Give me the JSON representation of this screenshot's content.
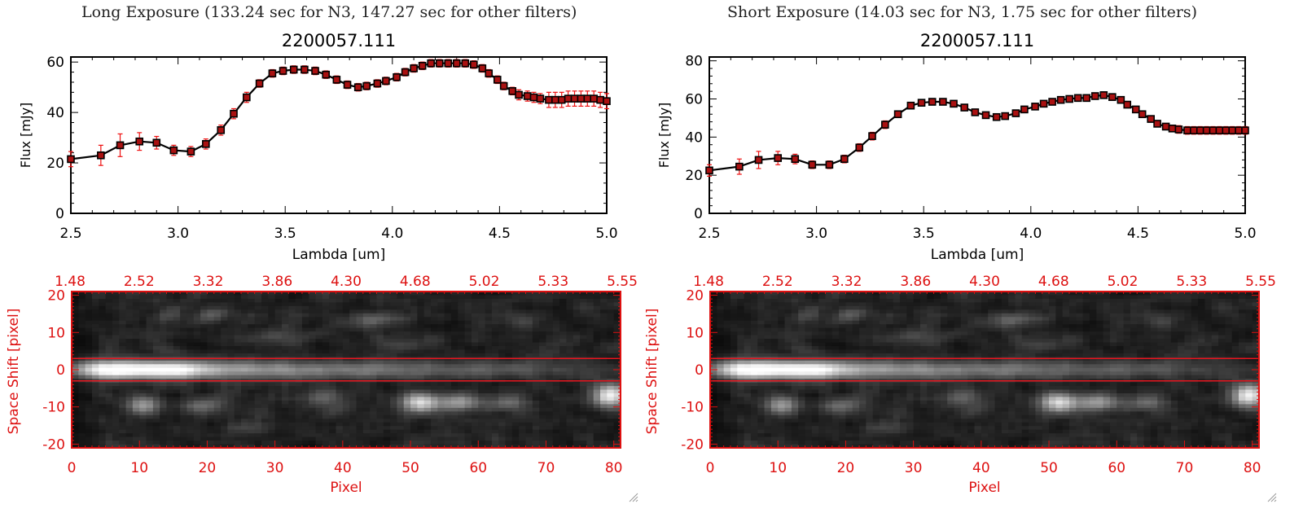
{
  "panels": [
    {
      "id": "long",
      "header": "Long Exposure (133.24 sec for N3, 147.27 sec for other filters)",
      "spectrum": {
        "type": "line",
        "title": "2200057.111",
        "xlabel": "Lambda [um]",
        "ylabel": "Flux [mJy]",
        "xlim": [
          2.5,
          5.0
        ],
        "ylim": [
          0,
          62
        ],
        "xticks": [
          "2.5",
          "3.0",
          "3.5",
          "4.0",
          "4.5",
          "5.0"
        ],
        "xtick_values": [
          2.5,
          3.0,
          3.5,
          4.0,
          4.5,
          5.0
        ],
        "yticks": [
          "0",
          "20",
          "40",
          "60"
        ],
        "ytick_values": [
          0,
          20,
          40,
          60
        ],
        "x": [
          2.5,
          2.64,
          2.73,
          2.82,
          2.9,
          2.98,
          3.06,
          3.13,
          3.2,
          3.26,
          3.32,
          3.38,
          3.44,
          3.49,
          3.54,
          3.59,
          3.64,
          3.69,
          3.74,
          3.79,
          3.84,
          3.88,
          3.93,
          3.97,
          4.02,
          4.06,
          4.1,
          4.14,
          4.18,
          4.22,
          4.26,
          4.3,
          4.34,
          4.38,
          4.42,
          4.45,
          4.49,
          4.52,
          4.56,
          4.59,
          4.63,
          4.66,
          4.69,
          4.73,
          4.76,
          4.79,
          4.82,
          4.85,
          4.88,
          4.91,
          4.94,
          4.97,
          5.0
        ],
        "y": [
          21.5,
          23,
          27,
          28.5,
          28,
          25,
          24.5,
          27.5,
          33,
          39.5,
          46,
          51.5,
          55.5,
          56.5,
          57,
          57,
          56.5,
          55,
          53,
          51,
          50,
          50.5,
          51.5,
          52.5,
          54,
          56,
          57.5,
          58.5,
          59.5,
          59.5,
          59.5,
          59.5,
          59.5,
          59,
          57.5,
          55.5,
          53,
          50.5,
          48.5,
          47,
          46.5,
          46,
          45.5,
          45,
          45,
          45,
          45.5,
          45.5,
          45.5,
          45.5,
          45.5,
          45,
          44.5
        ],
        "err": [
          3,
          4,
          4.5,
          3.5,
          2.5,
          2,
          2,
          2,
          2,
          2,
          2,
          1.5,
          1.5,
          1.5,
          1.5,
          1.5,
          1.5,
          1.5,
          1.5,
          1.5,
          1.5,
          1.5,
          1.5,
          1.5,
          1.5,
          1.5,
          1.5,
          1.5,
          1.5,
          1.5,
          1.5,
          1.5,
          1.5,
          1.5,
          1.5,
          1.5,
          1.5,
          1.5,
          1.5,
          2,
          2,
          2,
          2,
          3,
          3,
          3,
          3,
          3,
          3,
          3,
          3,
          3,
          3
        ]
      },
      "image": {
        "type": "heatmap",
        "xlabel": "Pixel",
        "ylabel": "Space Shift [pixel]",
        "xlim": [
          0,
          81
        ],
        "ylim": [
          -21,
          21
        ],
        "xticks": [
          "0",
          "10",
          "20",
          "30",
          "40",
          "50",
          "60",
          "70",
          "80"
        ],
        "xtick_values": [
          0,
          10,
          20,
          30,
          40,
          50,
          60,
          70,
          80
        ],
        "yticks": [
          "-20",
          "-10",
          "0",
          "10",
          "20"
        ],
        "ytick_values": [
          -20,
          -10,
          0,
          10,
          20
        ],
        "top_axis_labels": [
          "1.48",
          "2.52",
          "3.32",
          "3.86",
          "4.30",
          "4.68",
          "5.02",
          "5.33",
          "5.55"
        ],
        "aperture": [
          -3,
          3
        ]
      }
    },
    {
      "id": "short",
      "header": "Short Exposure (14.03 sec for N3, 1.75 sec for other filters)",
      "spectrum": {
        "type": "line",
        "title": "2200057.111",
        "xlabel": "Lambda [um]",
        "ylabel": "Flux [mJy]",
        "xlim": [
          2.5,
          5.0
        ],
        "ylim": [
          0,
          82
        ],
        "xticks": [
          "2.5",
          "3.0",
          "3.5",
          "4.0",
          "4.5",
          "5.0"
        ],
        "xtick_values": [
          2.5,
          3.0,
          3.5,
          4.0,
          4.5,
          5.0
        ],
        "yticks": [
          "0",
          "20",
          "40",
          "60",
          "80"
        ],
        "ytick_values": [
          0,
          20,
          40,
          60,
          80
        ],
        "x": [
          2.5,
          2.64,
          2.73,
          2.82,
          2.9,
          2.98,
          3.06,
          3.13,
          3.2,
          3.26,
          3.32,
          3.38,
          3.44,
          3.49,
          3.54,
          3.59,
          3.64,
          3.69,
          3.74,
          3.79,
          3.84,
          3.88,
          3.93,
          3.97,
          4.02,
          4.06,
          4.1,
          4.14,
          4.18,
          4.22,
          4.26,
          4.3,
          4.34,
          4.38,
          4.42,
          4.45,
          4.49,
          4.52,
          4.56,
          4.59,
          4.63,
          4.66,
          4.69,
          4.73,
          4.76,
          4.79,
          4.82,
          4.85,
          4.88,
          4.91,
          4.94,
          4.97,
          5.0
        ],
        "y": [
          22.5,
          24.5,
          28,
          29,
          28.5,
          25.5,
          25.5,
          28.5,
          34.5,
          40.5,
          46.5,
          52,
          56.5,
          58,
          58.5,
          58.5,
          57.5,
          55.5,
          53,
          51.5,
          50.5,
          51,
          52.5,
          54.5,
          56,
          57.5,
          58.5,
          59.5,
          60,
          60.5,
          60.5,
          61.5,
          62,
          61,
          59.5,
          57,
          54.5,
          52,
          49.5,
          47,
          45.5,
          44.5,
          44,
          43.5,
          43.5,
          43.5,
          43.5,
          43.5,
          43.5,
          43.5,
          43.5,
          43.5,
          43.5
        ],
        "err": [
          3,
          4,
          4.5,
          3.5,
          2.5,
          2,
          2,
          2,
          2,
          2,
          2,
          1.5,
          1.5,
          1.5,
          1.5,
          1.5,
          1.5,
          1.5,
          1.5,
          1.5,
          1.5,
          1.5,
          1.5,
          1.5,
          1.5,
          1.5,
          1.5,
          1.5,
          1.5,
          1.5,
          1.5,
          1.5,
          1.5,
          1.5,
          1.5,
          1.5,
          1.5,
          1.5,
          1.5,
          1.5,
          1.5,
          1.5,
          2,
          2,
          2,
          2,
          2,
          2,
          2,
          2,
          2,
          2,
          2
        ]
      },
      "image": {
        "type": "heatmap",
        "xlabel": "Pixel",
        "ylabel": "Space Shift [pixel]",
        "xlim": [
          0,
          81
        ],
        "ylim": [
          -21,
          21
        ],
        "xticks": [
          "0",
          "10",
          "20",
          "30",
          "40",
          "50",
          "60",
          "70",
          "80"
        ],
        "xtick_values": [
          0,
          10,
          20,
          30,
          40,
          50,
          60,
          70,
          80
        ],
        "yticks": [
          "-20",
          "-10",
          "0",
          "10",
          "20"
        ],
        "ytick_values": [
          -20,
          -10,
          0,
          10,
          20
        ],
        "top_axis_labels": [
          "1.48",
          "2.52",
          "3.32",
          "3.86",
          "4.30",
          "4.68",
          "5.02",
          "5.33",
          "5.55"
        ],
        "aperture": [
          -3,
          3
        ]
      }
    }
  ],
  "chart_data": [
    {
      "type": "line",
      "title": "2200057.111",
      "panel": "Long Exposure (133.24 sec for N3, 147.27 sec for other filters)",
      "xlabel": "Lambda [um]",
      "ylabel": "Flux [mJy]",
      "xlim": [
        2.5,
        5.0
      ],
      "ylim": [
        0,
        62
      ]
    },
    {
      "type": "heatmap",
      "panel": "Long Exposure (133.24 sec for N3, 147.27 sec for other filters)",
      "xlabel": "Pixel",
      "ylabel": "Space Shift [pixel]",
      "xlim": [
        0,
        81
      ],
      "ylim": [
        -21,
        21
      ]
    },
    {
      "type": "line",
      "title": "2200057.111",
      "panel": "Short Exposure (14.03 sec for N3, 1.75 sec for other filters)",
      "xlabel": "Lambda [um]",
      "ylabel": "Flux [mJy]",
      "xlim": [
        2.5,
        5.0
      ],
      "ylim": [
        0,
        82
      ]
    },
    {
      "type": "heatmap",
      "panel": "Short Exposure (14.03 sec for N3, 1.75 sec for other filters)",
      "xlabel": "Pixel",
      "ylabel": "Space Shift [pixel]",
      "xlim": [
        0,
        81
      ],
      "ylim": [
        -21,
        21
      ]
    }
  ],
  "colors": {
    "line": "#000000",
    "marker": "#aa1111",
    "errorbar": "#ee1111",
    "image_axis": "#dd1111",
    "aperture": "#e8141e"
  }
}
